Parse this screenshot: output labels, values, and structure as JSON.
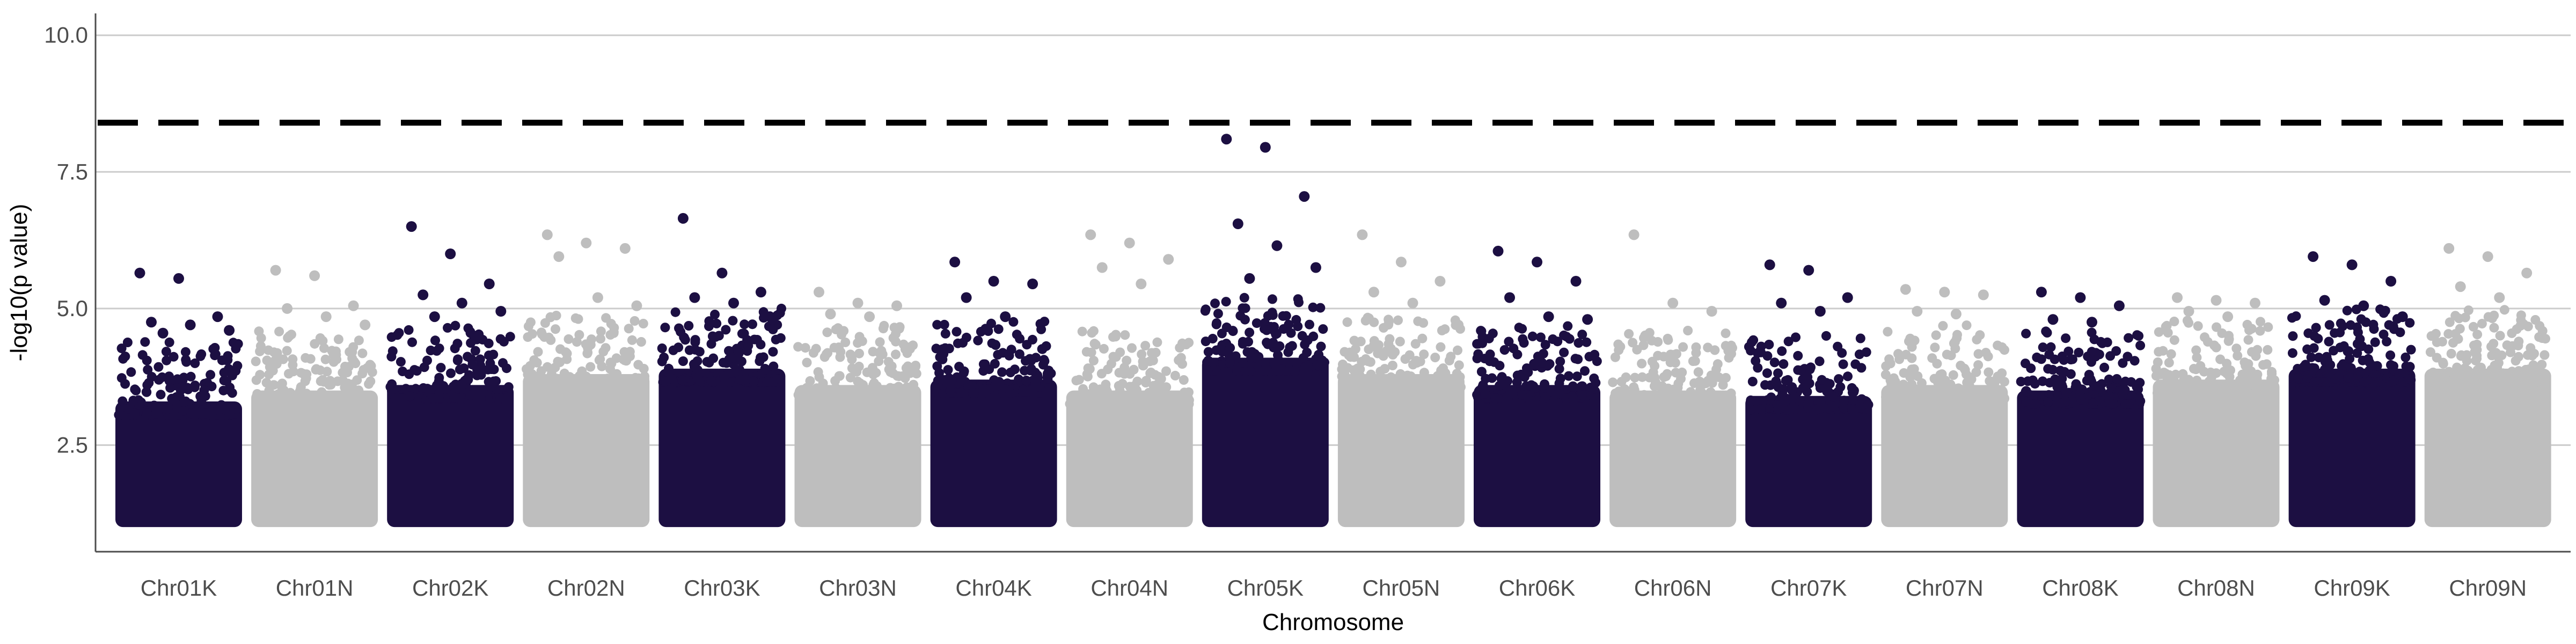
{
  "chart_data": {
    "type": "scatter",
    "subtype": "manhattan",
    "xlabel": "Chromosome",
    "ylabel": "-log10(p value)",
    "ylim": [
      0.55,
      10.4
    ],
    "y_ticks": [
      "2.5",
      "5.0",
      "7.5",
      "10.0"
    ],
    "grid": "horizontal",
    "threshold": 8.4,
    "colors": {
      "dark": "#1c0f42",
      "light": "#bebebe",
      "threshold": "#000000"
    },
    "chromosomes": [
      {
        "name": "Chr01K",
        "color": "dark",
        "base_top": 3.3,
        "peaks": [
          5.65,
          5.55,
          4.85,
          4.75,
          4.7,
          4.6,
          4.55
        ]
      },
      {
        "name": "Chr01N",
        "color": "light",
        "base_top": 3.5,
        "peaks": [
          5.7,
          5.6,
          5.05,
          5.0,
          4.85,
          4.7
        ]
      },
      {
        "name": "Chr02K",
        "color": "dark",
        "base_top": 3.6,
        "peaks": [
          6.5,
          6.0,
          5.45,
          5.25,
          5.1,
          4.95,
          4.85
        ]
      },
      {
        "name": "Chr02N",
        "color": "light",
        "base_top": 3.8,
        "peaks": [
          6.35,
          6.2,
          6.1,
          5.95,
          5.2,
          5.05
        ]
      },
      {
        "name": "Chr03K",
        "color": "dark",
        "base_top": 3.9,
        "peaks": [
          6.65,
          5.65,
          5.3,
          5.2,
          5.1,
          4.8
        ]
      },
      {
        "name": "Chr03N",
        "color": "light",
        "base_top": 3.6,
        "peaks": [
          5.3,
          5.1,
          5.05,
          4.9,
          4.85
        ]
      },
      {
        "name": "Chr04K",
        "color": "dark",
        "base_top": 3.7,
        "peaks": [
          5.85,
          5.5,
          5.45,
          5.2,
          4.85
        ]
      },
      {
        "name": "Chr04N",
        "color": "light",
        "base_top": 3.5,
        "peaks": [
          6.35,
          6.2,
          5.9,
          5.75,
          5.45
        ]
      },
      {
        "name": "Chr05K",
        "color": "dark",
        "base_top": 4.1,
        "peaks": [
          8.1,
          7.95,
          7.05,
          6.55,
          6.15,
          5.75,
          5.55
        ]
      },
      {
        "name": "Chr05N",
        "color": "light",
        "base_top": 3.8,
        "peaks": [
          6.35,
          5.85,
          5.5,
          5.3,
          5.1
        ]
      },
      {
        "name": "Chr06K",
        "color": "dark",
        "base_top": 3.6,
        "peaks": [
          6.05,
          5.85,
          5.5,
          5.2,
          4.85,
          4.8
        ]
      },
      {
        "name": "Chr06N",
        "color": "light",
        "base_top": 3.5,
        "peaks": [
          6.35,
          5.1,
          4.95,
          4.5
        ]
      },
      {
        "name": "Chr07K",
        "color": "dark",
        "base_top": 3.4,
        "peaks": [
          5.8,
          5.7,
          5.2,
          5.1,
          4.95
        ]
      },
      {
        "name": "Chr07N",
        "color": "light",
        "base_top": 3.6,
        "peaks": [
          5.35,
          5.3,
          5.25,
          4.95,
          4.9
        ]
      },
      {
        "name": "Chr08K",
        "color": "dark",
        "base_top": 3.5,
        "peaks": [
          5.3,
          5.2,
          5.05,
          4.8,
          4.75
        ]
      },
      {
        "name": "Chr08N",
        "color": "light",
        "base_top": 3.7,
        "peaks": [
          5.2,
          5.15,
          5.1,
          4.95,
          4.85
        ]
      },
      {
        "name": "Chr09K",
        "color": "dark",
        "base_top": 3.9,
        "peaks": [
          5.95,
          5.8,
          5.5,
          5.15,
          5.05,
          4.85
        ]
      },
      {
        "name": "Chr09N",
        "color": "light",
        "base_top": 3.9,
        "peaks": [
          6.1,
          5.95,
          5.65,
          5.4,
          5.2
        ]
      }
    ]
  }
}
